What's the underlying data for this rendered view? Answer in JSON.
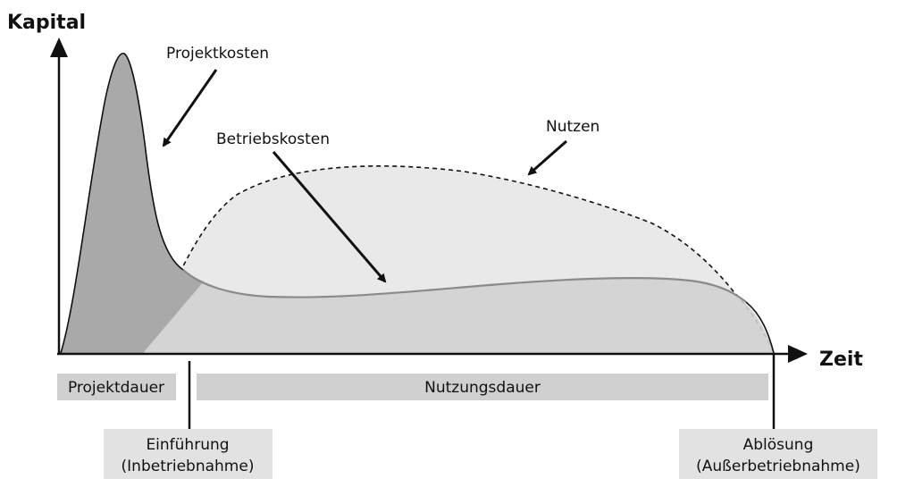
{
  "axes": {
    "y_label": "Kapital",
    "x_label": "Zeit"
  },
  "curves": {
    "projektkosten": "Projektkosten",
    "betriebskosten": "Betriebskosten",
    "nutzen": "Nutzen"
  },
  "phases": {
    "projektdauer": "Projektdauer",
    "nutzungsdauer": "Nutzungsdauer"
  },
  "milestones": {
    "einfuehrung": {
      "line1": "Einführung",
      "line2": "(Inbetriebnahme)"
    },
    "abloesung": {
      "line1": "Ablösung",
      "line2": "(Außerbetriebnahme)"
    }
  },
  "colors": {
    "projektkosten_fill": "#a9a9a9",
    "betriebskosten_fill": "#d1d1d1",
    "nutzen_fill": "#e9e9e9",
    "betriebskosten_line": "#8a8a8a",
    "phase_bar": "#d0d0d0",
    "milestone_box": "#e2e2e2",
    "ink": "#111111"
  }
}
